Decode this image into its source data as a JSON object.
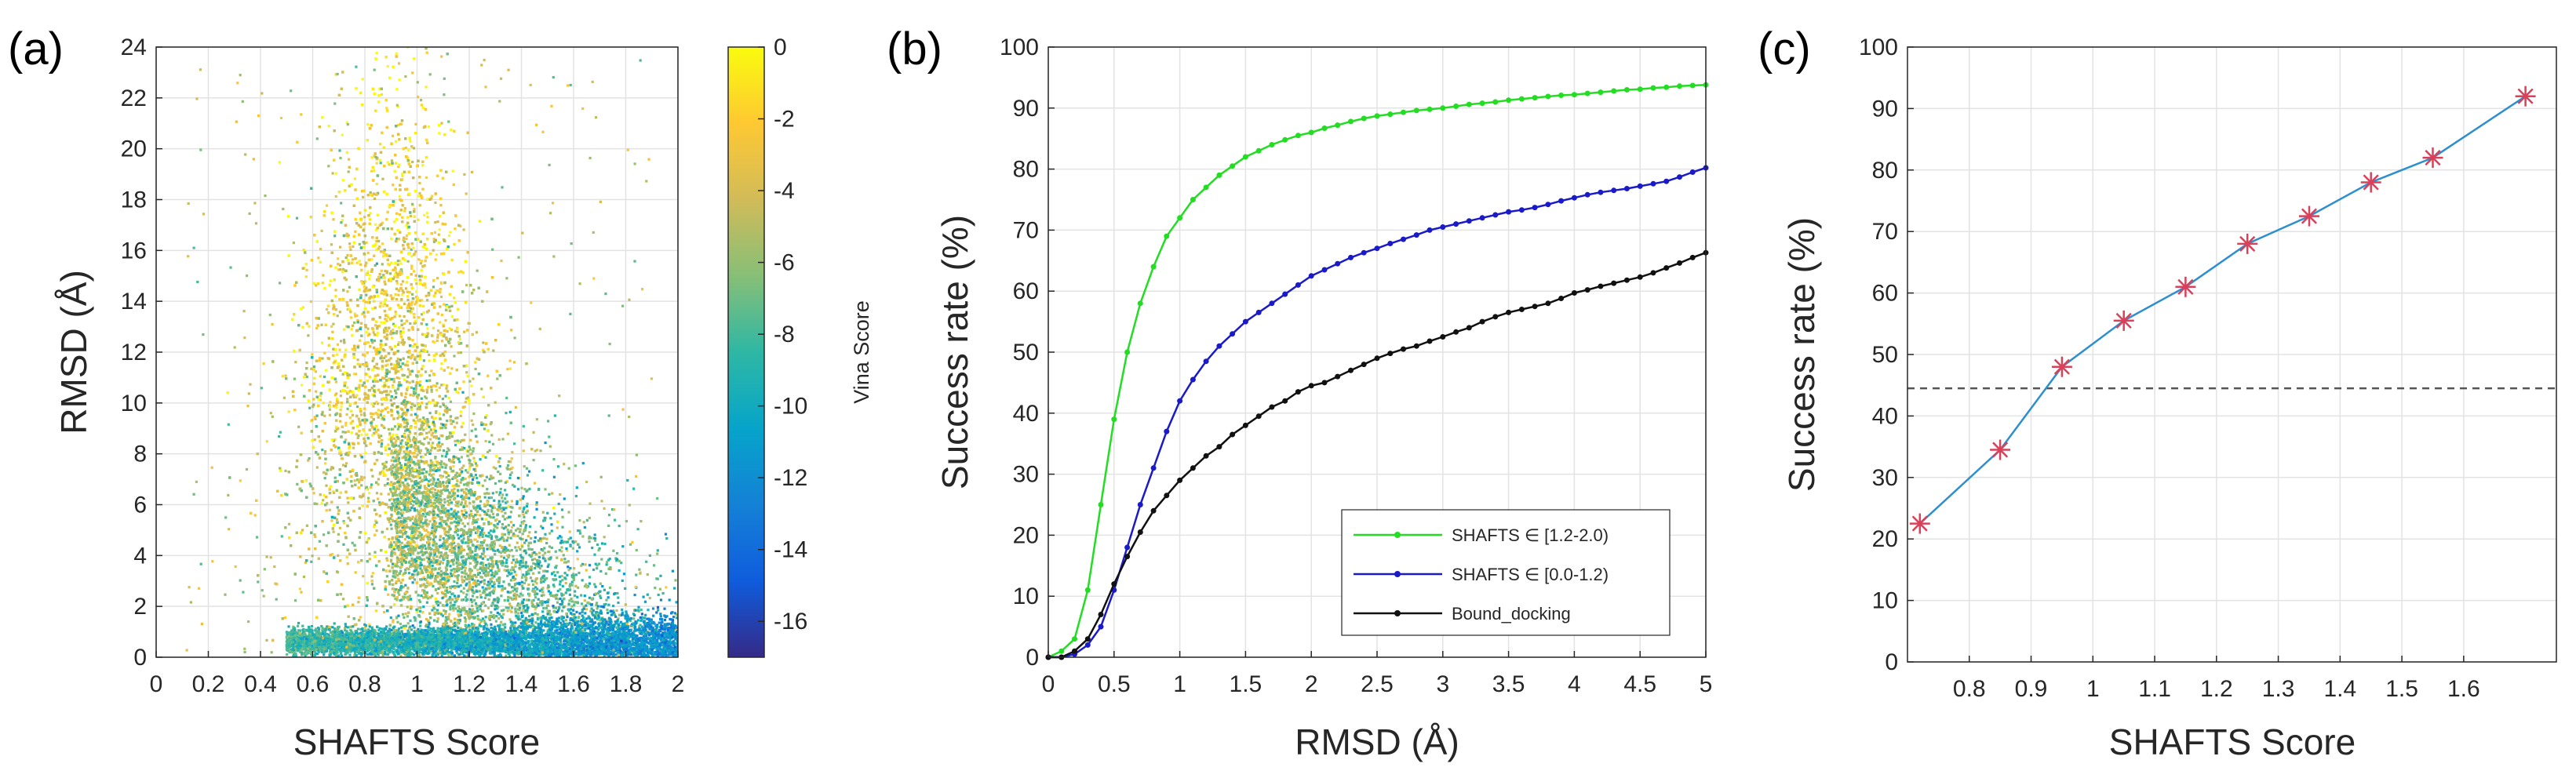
{
  "colors": {
    "green": "#22dd22",
    "blue": "#1a1ac8",
    "black": "#111111",
    "line_c": "#2e8fcf",
    "star": "#d9405a",
    "dashed": "#555555",
    "grid": "#e3e3e3",
    "axis": "#262626",
    "parula": [
      "#352a87",
      "#0f5cdd",
      "#1481d6",
      "#06a4ca",
      "#2eb7a4",
      "#87bf77",
      "#d1bb59",
      "#fec832",
      "#f9fb0e"
    ]
  },
  "chart_data": [
    {
      "panel": "(a)",
      "type": "scatter",
      "xlabel": "SHAFTS Score",
      "ylabel": "RMSD (Å)",
      "xlim": [
        0,
        2
      ],
      "ylim": [
        0,
        24
      ],
      "xticks": [
        "0",
        "0.2",
        "0.4",
        "0.6",
        "0.8",
        "1",
        "1.2",
        "1.4",
        "1.6",
        "1.8",
        "2"
      ],
      "yticks": [
        "0",
        "2",
        "4",
        "6",
        "8",
        "10",
        "12",
        "14",
        "16",
        "18",
        "20",
        "22",
        "24"
      ],
      "colorbar": {
        "label": "Vina Score",
        "range": [
          -17,
          0
        ],
        "ticks": [
          "0",
          "-2",
          "-4",
          "-6",
          "-8",
          "-10",
          "-12",
          "-14",
          "-16"
        ]
      },
      "density_description_points": [
        {
          "x": 0.9,
          "y": 10,
          "spread_x": 0.25,
          "spread_y": 5.5,
          "vina_mean": -3.5
        },
        {
          "x": 1.3,
          "y": 0.6,
          "spread_x": 0.4,
          "spread_y": 0.5,
          "vina_mean": -9.5
        }
      ]
    },
    {
      "panel": "(b)",
      "type": "line",
      "xlabel": "RMSD (Å)",
      "ylabel": "Success rate (%)",
      "xlim": [
        0,
        5
      ],
      "ylim": [
        0,
        100
      ],
      "xticks": [
        "0",
        "0.5",
        "1",
        "1.5",
        "2",
        "2.5",
        "3",
        "3.5",
        "4",
        "4.5",
        "5"
      ],
      "yticks": [
        "0",
        "10",
        "20",
        "30",
        "40",
        "50",
        "60",
        "70",
        "80",
        "90",
        "100"
      ],
      "legend_position": "bottom-right",
      "series": [
        {
          "name": "SHAFTS ∈ [1.2-2.0)",
          "color": "green",
          "x": [
            0.1,
            0.2,
            0.3,
            0.4,
            0.5,
            0.6,
            0.7,
            0.8,
            0.9,
            1.0,
            1.1,
            1.2,
            1.3,
            1.4,
            1.5,
            1.6,
            1.7,
            1.8,
            1.9,
            2.0,
            2.1,
            2.2,
            2.3,
            2.4,
            2.5,
            2.6,
            2.7,
            2.8,
            2.9,
            3.0,
            3.1,
            3.2,
            3.3,
            3.4,
            3.5,
            3.6,
            3.7,
            3.8,
            3.9,
            4.0,
            4.1,
            4.2,
            4.3,
            4.4,
            4.5,
            4.6,
            4.7,
            4.8,
            4.9,
            5.0
          ],
          "y": [
            1,
            3,
            11,
            25,
            39,
            50,
            58,
            64,
            69,
            72,
            75,
            77,
            79,
            80.5,
            82,
            83,
            84,
            84.8,
            85.5,
            86,
            86.7,
            87.2,
            87.8,
            88.3,
            88.7,
            89,
            89.3,
            89.6,
            89.8,
            90,
            90.3,
            90.6,
            90.8,
            91,
            91.3,
            91.5,
            91.7,
            91.9,
            92.1,
            92.2,
            92.4,
            92.6,
            92.8,
            93,
            93.1,
            93.3,
            93.4,
            93.6,
            93.7,
            93.8
          ]
        },
        {
          "name": "SHAFTS ∈ [0.0-1.2)",
          "color": "blue",
          "x": [
            0.1,
            0.2,
            0.3,
            0.4,
            0.5,
            0.6,
            0.7,
            0.8,
            0.9,
            1.0,
            1.1,
            1.2,
            1.3,
            1.4,
            1.5,
            1.6,
            1.7,
            1.8,
            1.9,
            2.0,
            2.1,
            2.2,
            2.3,
            2.4,
            2.5,
            2.6,
            2.7,
            2.8,
            2.9,
            3.0,
            3.1,
            3.2,
            3.3,
            3.4,
            3.5,
            3.6,
            3.7,
            3.8,
            3.9,
            4.0,
            4.1,
            4.2,
            4.3,
            4.4,
            4.5,
            4.6,
            4.7,
            4.8,
            4.9,
            5.0
          ],
          "y": [
            0,
            0.5,
            2,
            5,
            11,
            18,
            25,
            31,
            37,
            42,
            45.5,
            48.5,
            51,
            53,
            55,
            56.5,
            58,
            59.5,
            61,
            62.5,
            63.5,
            64.5,
            65.5,
            66.3,
            67,
            67.8,
            68.5,
            69.2,
            70,
            70.5,
            71,
            71.5,
            72,
            72.5,
            73,
            73.3,
            73.7,
            74.2,
            74.8,
            75.3,
            75.8,
            76.2,
            76.5,
            76.8,
            77.2,
            77.6,
            78,
            78.7,
            79.5,
            80.2
          ]
        },
        {
          "name": "Bound_docking",
          "color": "black",
          "x": [
            0.1,
            0.2,
            0.3,
            0.4,
            0.5,
            0.6,
            0.7,
            0.8,
            0.9,
            1.0,
            1.1,
            1.2,
            1.3,
            1.4,
            1.5,
            1.6,
            1.7,
            1.8,
            1.9,
            2.0,
            2.1,
            2.2,
            2.3,
            2.4,
            2.5,
            2.6,
            2.7,
            2.8,
            2.9,
            3.0,
            3.1,
            3.2,
            3.3,
            3.4,
            3.5,
            3.6,
            3.7,
            3.8,
            3.9,
            4.0,
            4.1,
            4.2,
            4.3,
            4.4,
            4.5,
            4.6,
            4.7,
            4.8,
            4.9,
            5.0
          ],
          "y": [
            0,
            1,
            3,
            7,
            12,
            16.5,
            20.5,
            24,
            26.5,
            29,
            31,
            33,
            34.5,
            36.5,
            38,
            39.5,
            41,
            42,
            43.5,
            44.5,
            45,
            46,
            47,
            48,
            49,
            49.8,
            50.5,
            51,
            51.8,
            52.5,
            53.3,
            54,
            55,
            55.8,
            56.5,
            57,
            57.5,
            58,
            58.8,
            59.7,
            60.2,
            60.8,
            61.3,
            61.8,
            62.3,
            63,
            63.8,
            64.6,
            65.5,
            66.3
          ]
        }
      ]
    },
    {
      "panel": "(c)",
      "type": "line",
      "xlabel": "SHAFTS Score",
      "ylabel": "Success rate (%)",
      "xlim": [
        0.7,
        1.75
      ],
      "ylim": [
        0,
        100
      ],
      "xticks": [
        "0.8",
        "0.9",
        "1",
        "1.1",
        "1.2",
        "1.3",
        "1.4",
        "1.5",
        "1.6"
      ],
      "yticks": [
        "0",
        "10",
        "20",
        "30",
        "40",
        "50",
        "60",
        "70",
        "80",
        "90",
        "100"
      ],
      "hline": 44.5,
      "series": [
        {
          "name": "Success rate",
          "x": [
            0.72,
            0.85,
            0.95,
            1.05,
            1.15,
            1.25,
            1.35,
            1.45,
            1.55,
            1.7
          ],
          "y": [
            22.5,
            34.5,
            48,
            55.5,
            61,
            68,
            72.5,
            78,
            82,
            92
          ]
        }
      ]
    }
  ]
}
